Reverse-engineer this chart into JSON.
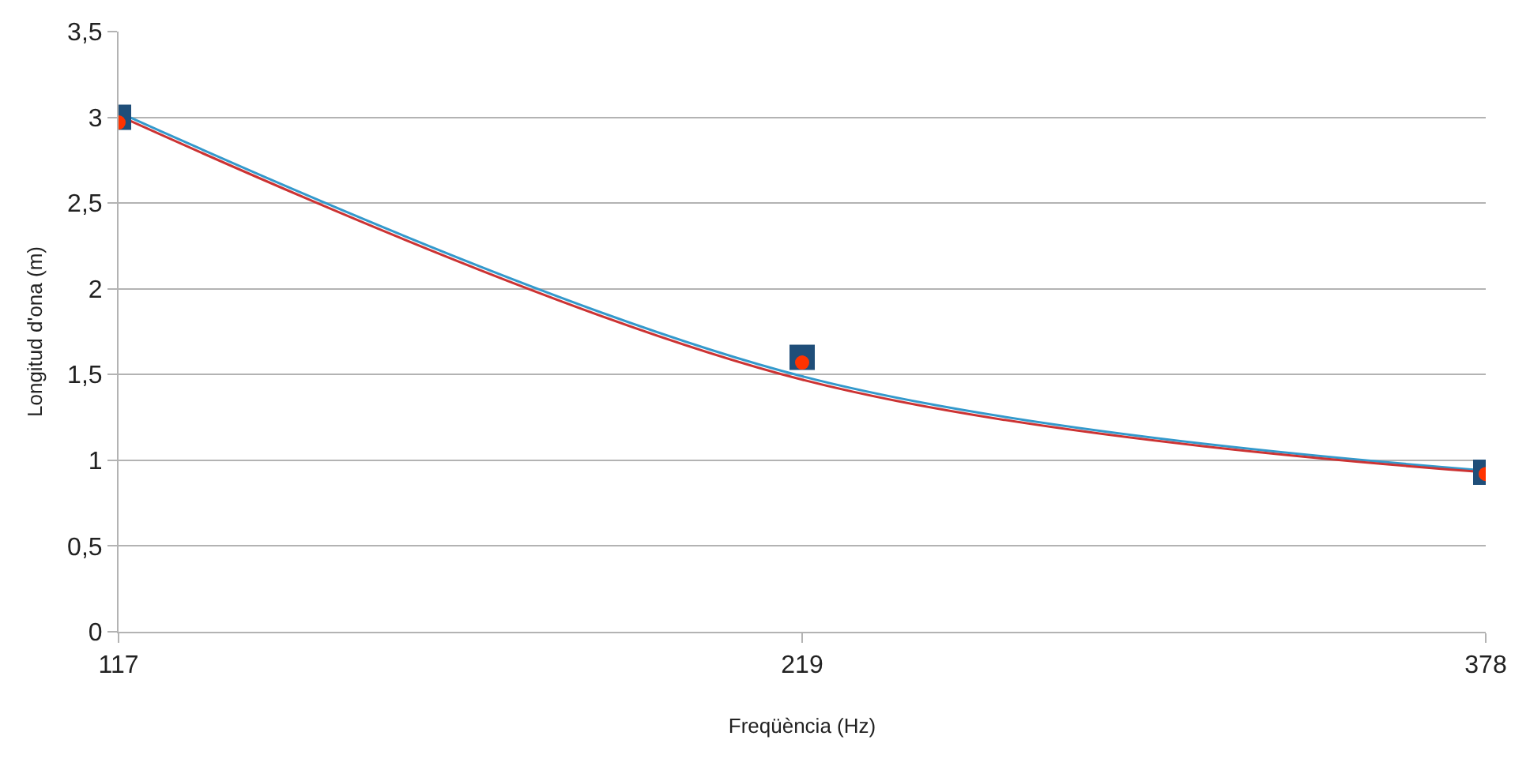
{
  "chart_data": {
    "type": "scatter",
    "xlabel": "Freqüència (Hz)",
    "ylabel": "Longitud d'ona (m)",
    "categories": [
      "117",
      "219",
      "378"
    ],
    "series": [
      {
        "color": "#1f4e79",
        "marker": "square",
        "values": [
          3.0,
          1.6,
          0.93
        ]
      },
      {
        "color": "#ff3300",
        "marker": "circle",
        "values": [
          2.97,
          1.57,
          0.92
        ]
      },
      {
        "type": "line",
        "color": "#3399cc",
        "marker": "none",
        "values": [
          3.03,
          1.49,
          0.94
        ]
      },
      {
        "type": "line",
        "color": "#cc3333",
        "marker": "none",
        "values": [
          3.01,
          1.47,
          0.93
        ]
      }
    ],
    "ylim": [
      0,
      3.5
    ],
    "yticks": [
      0,
      {
        "value": 0.5,
        "label": "0,5"
      },
      1,
      {
        "value": 1.5,
        "label": "1,5"
      },
      2,
      {
        "value": 2.5,
        "label": "2,5"
      },
      3,
      {
        "value": 3.5,
        "label": "3,5"
      }
    ],
    "grid": "y",
    "legend": false
  }
}
